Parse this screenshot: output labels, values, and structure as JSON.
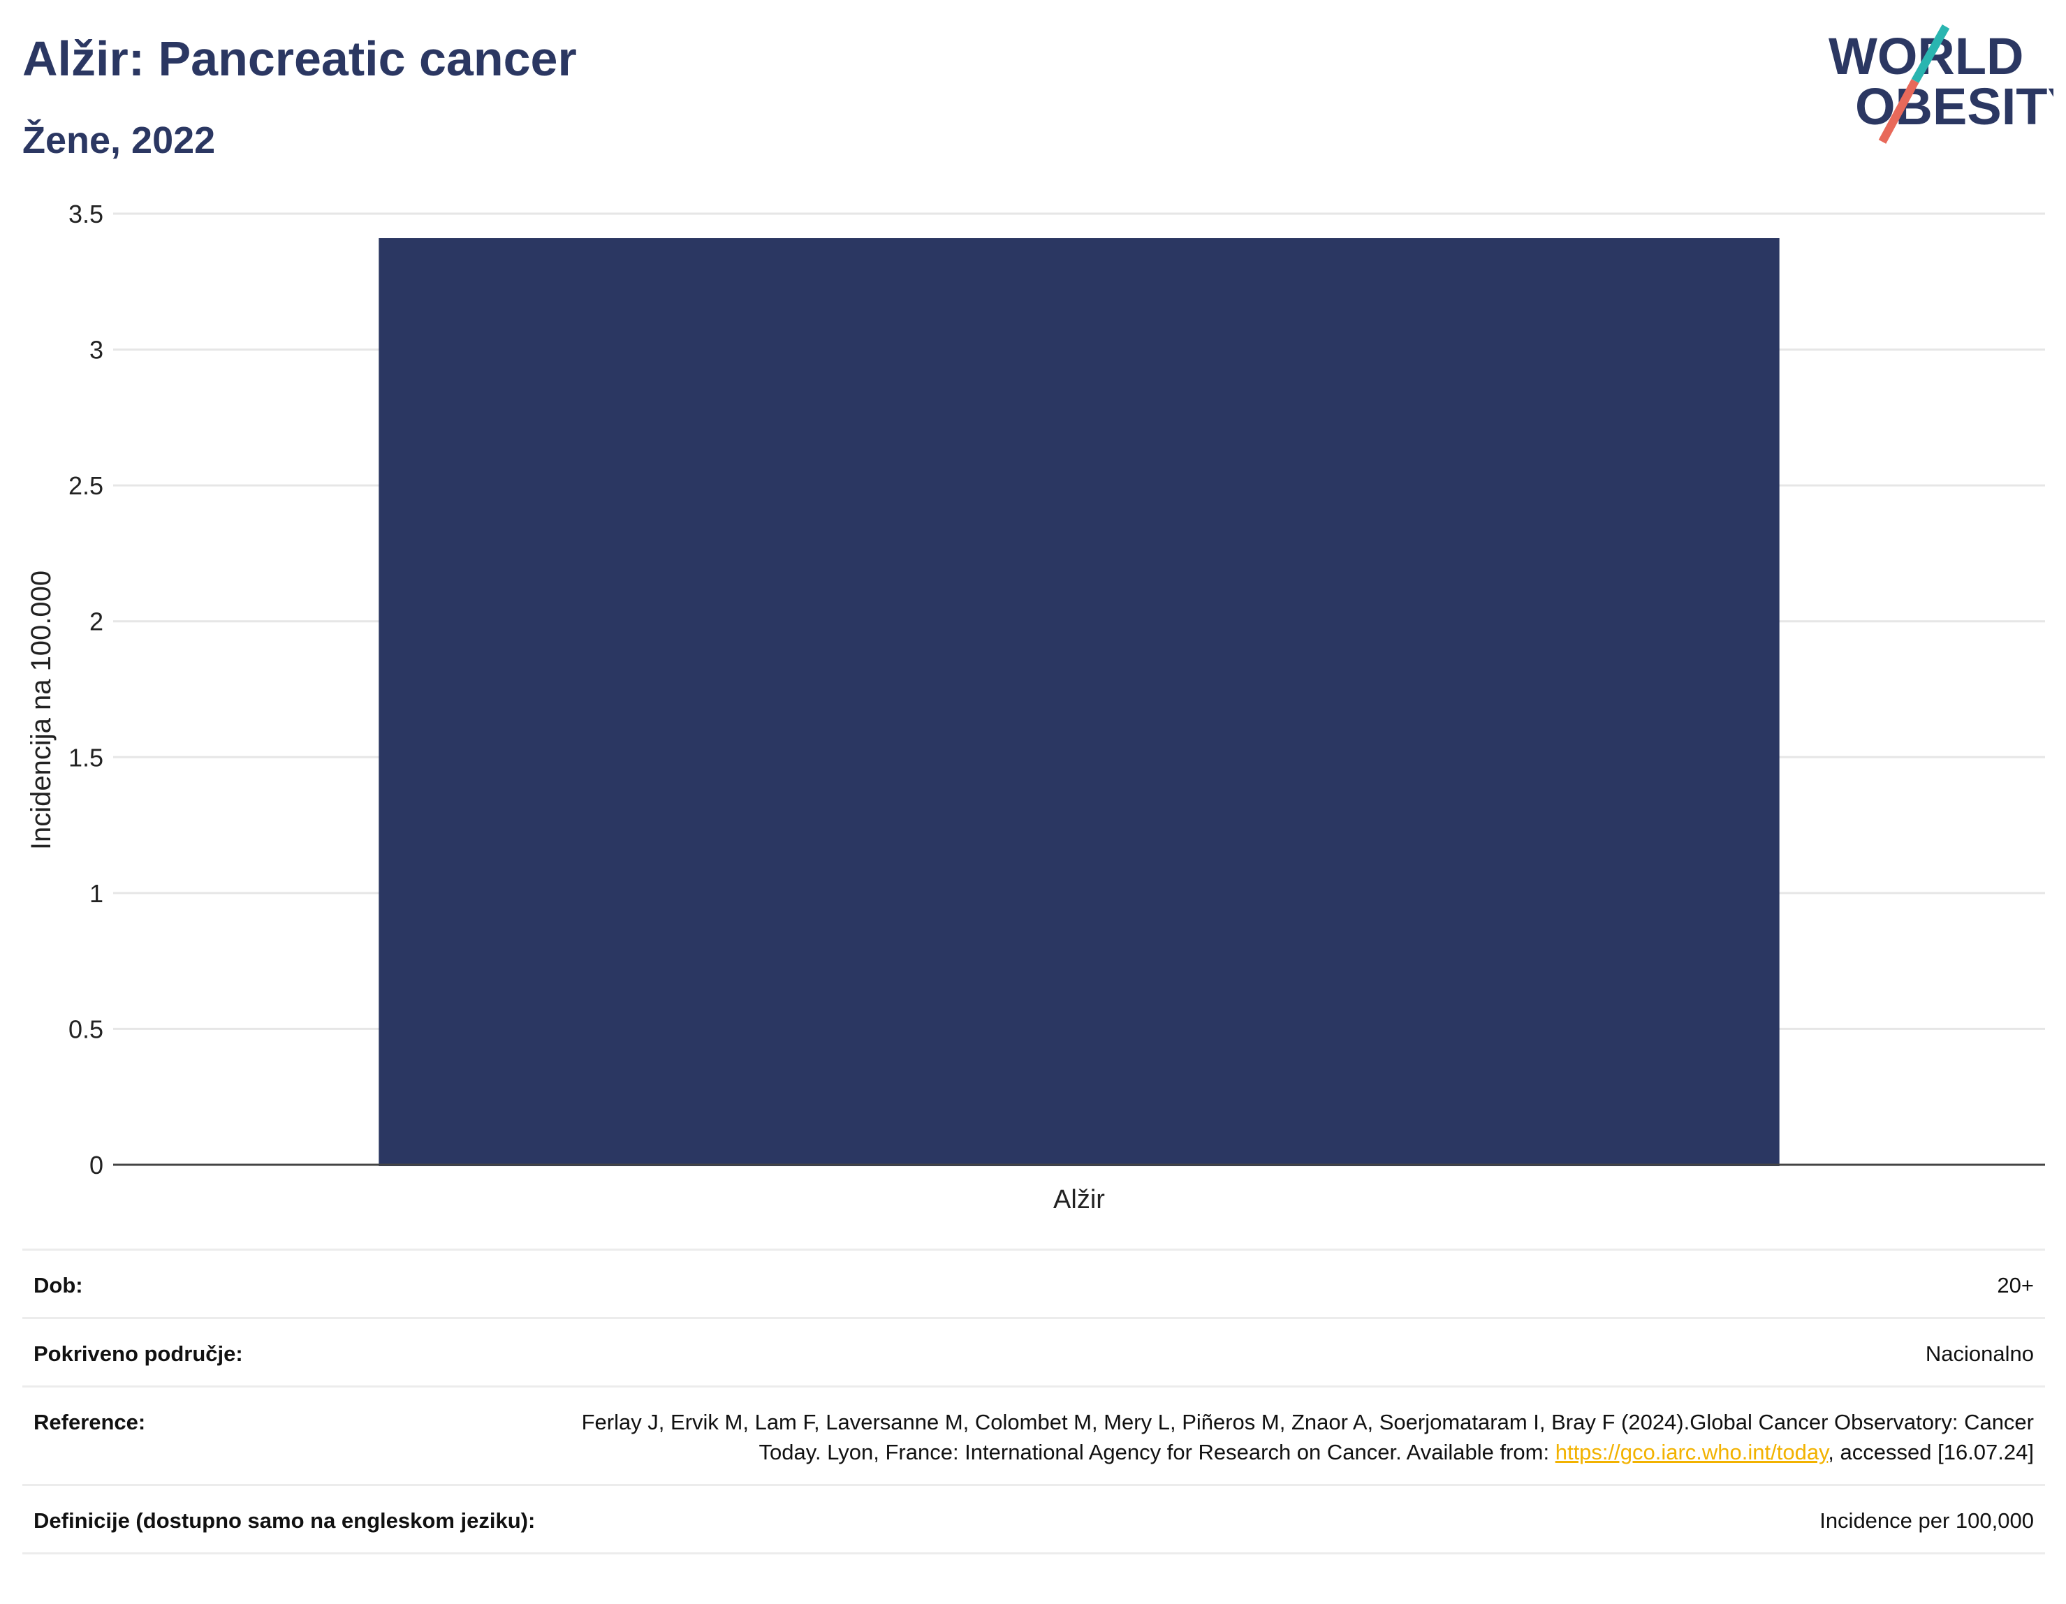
{
  "header": {
    "title": "Alžir: Pancreatic cancer",
    "subtitle": "Žene, 2022"
  },
  "logo": {
    "line1": "WORLD",
    "line2": "OBESITY",
    "colors": {
      "text": "#2b3762",
      "slash_top": "#2ab5b0",
      "slash_bottom": "#e8695a"
    }
  },
  "chart_data": {
    "type": "bar",
    "categories": [
      "Alžir"
    ],
    "values": [
      3.41
    ],
    "ylabel": "Incidencija na 100.000",
    "ylim": [
      0,
      3.5
    ],
    "yticks": [
      0,
      0.5,
      1,
      1.5,
      2,
      2.5,
      3,
      3.5
    ],
    "ytick_labels": [
      "0",
      "0.5",
      "1",
      "1.5",
      "2",
      "2.5",
      "3",
      "3.5"
    ],
    "grid": true,
    "legend": "none",
    "bar_color": "#2b3762"
  },
  "info": {
    "age_label": "Dob:",
    "age_value": "20+",
    "coverage_label": "Pokriveno područje:",
    "coverage_value": "Nacionalno",
    "reference_label": "Reference:",
    "reference_text": "Ferlay J, Ervik M, Lam F, Laversanne M, Colombet M, Mery L, Piñeros M, Znaor A, Soerjomataram I, Bray F (2024).Global Cancer Observatory: Cancer Today. Lyon, France: International Agency for Research on Cancer. Available from: ",
    "reference_link": "https://gco.iarc.who.int/today",
    "reference_suffix": ", accessed [16.07.24]",
    "definition_label": "Definicije (dostupno samo na engleskom jeziku):",
    "definition_value": "Incidence per 100,000"
  }
}
